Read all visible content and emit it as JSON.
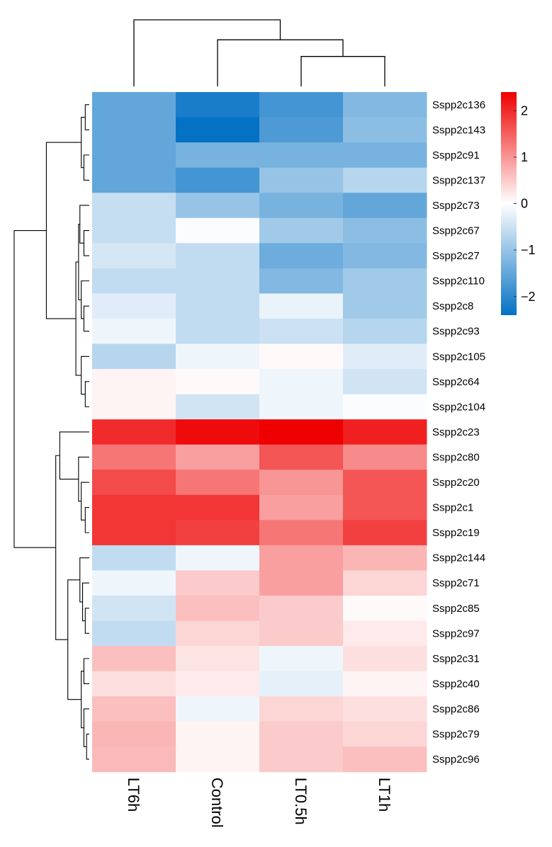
{
  "chart_data": {
    "type": "heatmap",
    "title": "",
    "columns": [
      "LT6h",
      "Control",
      "LT0.5h",
      "LT1h"
    ],
    "rows": [
      {
        "gene": "Sspp2c136",
        "values": [
          -1.5,
          -2.2,
          -1.8,
          -1.2
        ]
      },
      {
        "gene": "Sspp2c143",
        "values": [
          -1.5,
          -2.4,
          -1.7,
          -1.1
        ]
      },
      {
        "gene": "Sspp2c91",
        "values": [
          -1.5,
          -1.3,
          -1.3,
          -1.3
        ]
      },
      {
        "gene": "Sspp2c137",
        "values": [
          -1.5,
          -1.8,
          -1.0,
          -0.7
        ]
      },
      {
        "gene": "Sspp2c73",
        "values": [
          -0.55,
          -1.0,
          -1.3,
          -1.5
        ]
      },
      {
        "gene": "Sspp2c67",
        "values": [
          -0.55,
          -0.05,
          -0.9,
          -1.1
        ]
      },
      {
        "gene": "Sspp2c27",
        "values": [
          -0.4,
          -0.6,
          -1.4,
          -1.2
        ]
      },
      {
        "gene": "Sspp2c110",
        "values": [
          -0.6,
          -0.6,
          -1.2,
          -0.9
        ]
      },
      {
        "gene": "Sspp2c8",
        "values": [
          -0.3,
          -0.6,
          -0.2,
          -0.9
        ]
      },
      {
        "gene": "Sspp2c93",
        "values": [
          -0.15,
          -0.6,
          -0.5,
          -0.7
        ]
      },
      {
        "gene": "Sspp2c105",
        "values": [
          -0.7,
          -0.15,
          0.05,
          -0.3
        ]
      },
      {
        "gene": "Sspp2c64",
        "values": [
          0.1,
          0.05,
          -0.15,
          -0.45
        ]
      },
      {
        "gene": "Sspp2c104",
        "values": [
          0.1,
          -0.45,
          -0.15,
          -0.05
        ]
      },
      {
        "gene": "Sspp2c23",
        "values": [
          2.0,
          2.3,
          2.4,
          2.1
        ]
      },
      {
        "gene": "Sspp2c80",
        "values": [
          1.3,
          0.9,
          1.6,
          1.1
        ]
      },
      {
        "gene": "Sspp2c20",
        "values": [
          1.7,
          1.3,
          1.0,
          1.6
        ]
      },
      {
        "gene": "Sspp2c1",
        "values": [
          1.9,
          1.9,
          0.9,
          1.6
        ]
      },
      {
        "gene": "Sspp2c19",
        "values": [
          1.9,
          1.8,
          1.3,
          1.8
        ]
      },
      {
        "gene": "Sspp2c144",
        "values": [
          -0.6,
          -0.15,
          0.9,
          0.7
        ]
      },
      {
        "gene": "Sspp2c71",
        "values": [
          -0.15,
          0.5,
          0.9,
          0.4
        ]
      },
      {
        "gene": "Sspp2c85",
        "values": [
          -0.45,
          0.6,
          0.5,
          0.05
        ]
      },
      {
        "gene": "Sspp2c97",
        "values": [
          -0.6,
          0.4,
          0.5,
          0.2
        ]
      },
      {
        "gene": "Sspp2c31",
        "values": [
          0.6,
          0.25,
          -0.15,
          0.3
        ]
      },
      {
        "gene": "Sspp2c40",
        "values": [
          0.3,
          0.2,
          -0.25,
          0.1
        ]
      },
      {
        "gene": "Sspp2c86",
        "values": [
          0.6,
          -0.15,
          0.4,
          0.3
        ]
      },
      {
        "gene": "Sspp2c79",
        "values": [
          0.7,
          0.1,
          0.5,
          0.4
        ]
      },
      {
        "gene": "Sspp2c96",
        "values": [
          0.65,
          0.1,
          0.5,
          0.6
        ]
      }
    ],
    "color_scale": {
      "min": -2.4,
      "max": 2.4,
      "low_color": "#0571c4",
      "mid_color": "#ffffff",
      "high_color": "#ee0000",
      "ticks": [
        2,
        1,
        0,
        -1,
        -2
      ],
      "tick_labels": [
        "2",
        "1",
        "0",
        "−1",
        "−2"
      ]
    },
    "column_dendrogram": {
      "leaves": [
        "LT6h",
        "Control",
        "LT0.5h",
        "LT1h"
      ],
      "merges": [
        {
          "a": "LT0.5h",
          "b": "LT1h",
          "height": 0.45
        },
        {
          "a": "Control",
          "b": "LT0.5h+LT1h",
          "height": 0.7
        },
        {
          "a": "LT6h",
          "b": "Control+LT0.5h+LT1h",
          "height": 1.0
        }
      ]
    },
    "row_dendrogram": {
      "merges": [
        {
          "id": "c1",
          "a": "Sspp2c136",
          "b": "Sspp2c143",
          "height": 0.03
        },
        {
          "id": "c2",
          "a": "Sspp2c91",
          "b": "Sspp2c137",
          "height": 0.04
        },
        {
          "id": "c3",
          "a": "c1",
          "b": "c2",
          "height": 0.06
        },
        {
          "id": "c4",
          "a": "Sspp2c67",
          "b": "Sspp2c27",
          "height": 0.04
        },
        {
          "id": "c5",
          "a": "Sspp2c73",
          "b": "c4",
          "height": 0.07
        },
        {
          "id": "c6",
          "a": "Sspp2c8",
          "b": "Sspp2c93",
          "height": 0.04
        },
        {
          "id": "c7",
          "a": "Sspp2c110",
          "b": "c6",
          "height": 0.06
        },
        {
          "id": "c8",
          "a": "c5",
          "b": "c7",
          "height": 0.08
        },
        {
          "id": "c9",
          "a": "Sspp2c64",
          "b": "Sspp2c104",
          "height": 0.03
        },
        {
          "id": "c10",
          "a": "Sspp2c105",
          "b": "c9",
          "height": 0.06
        },
        {
          "id": "c11",
          "a": "c8",
          "b": "c10",
          "height": 0.1
        },
        {
          "id": "c12",
          "a": "c3",
          "b": "c11",
          "height": 0.32
        },
        {
          "id": "c13",
          "a": "Sspp2c1",
          "b": "Sspp2c19",
          "height": 0.03
        },
        {
          "id": "c14",
          "a": "Sspp2c20",
          "b": "c13",
          "height": 0.06
        },
        {
          "id": "c15",
          "a": "Sspp2c80",
          "b": "c14",
          "height": 0.08
        },
        {
          "id": "c16",
          "a": "Sspp2c23",
          "b": "c15",
          "height": 0.22
        },
        {
          "id": "c17",
          "a": "Sspp2c85",
          "b": "Sspp2c97",
          "height": 0.03
        },
        {
          "id": "c18",
          "a": "Sspp2c71",
          "b": "c17",
          "height": 0.05
        },
        {
          "id": "c19",
          "a": "Sspp2c144",
          "b": "c18",
          "height": 0.07
        },
        {
          "id": "c20",
          "a": "Sspp2c31",
          "b": "Sspp2c40",
          "height": 0.04
        },
        {
          "id": "c21",
          "a": "Sspp2c79",
          "b": "Sspp2c96",
          "height": 0.02
        },
        {
          "id": "c22",
          "a": "Sspp2c86",
          "b": "c21",
          "height": 0.04
        },
        {
          "id": "c23",
          "a": "c20",
          "b": "c22",
          "height": 0.06
        },
        {
          "id": "c24",
          "a": "c19",
          "b": "c23",
          "height": 0.16
        },
        {
          "id": "c25",
          "a": "c16",
          "b": "c24",
          "height": 0.25
        },
        {
          "id": "c26",
          "a": "c12",
          "b": "c25",
          "height": 0.56
        }
      ]
    }
  }
}
